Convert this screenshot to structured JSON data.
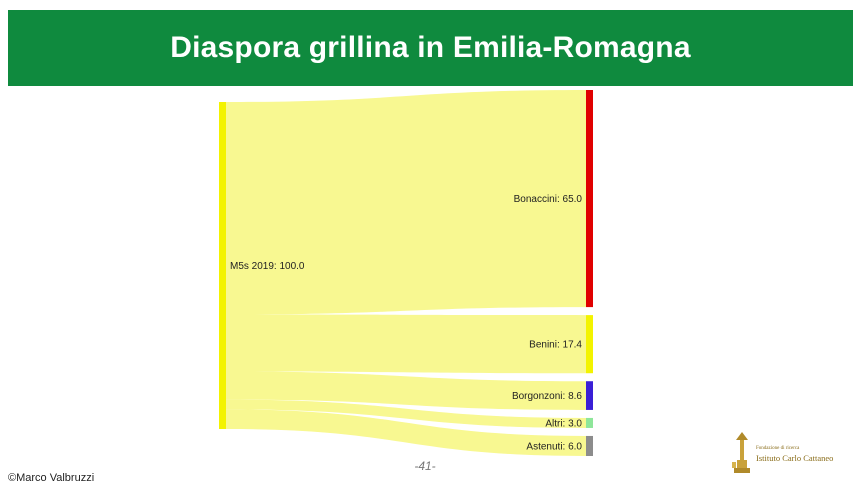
{
  "header": {
    "title": "Diaspora grillina in Emilia-Romagna"
  },
  "chart_data": {
    "type": "sankey",
    "source": {
      "name": "M5s 2019",
      "value": 100.0,
      "label": "M5s 2019: 100.0",
      "color": "#f3f300"
    },
    "targets": [
      {
        "name": "Bonaccini",
        "value": 65.0,
        "label": "Bonaccini: 65.0",
        "color": "#e00000"
      },
      {
        "name": "Benini",
        "value": 17.4,
        "label": "Benini: 17.4",
        "color": "#f3f300"
      },
      {
        "name": "Borgonzoni",
        "value": 8.6,
        "label": "Borgonzoni: 8.6",
        "color": "#3a1fd6"
      },
      {
        "name": "Altri",
        "value": 3.0,
        "label": "Altri: 3.0",
        "color": "#8ee69a"
      },
      {
        "name": "Astenuti",
        "value": 6.0,
        "label": "Astenuti: 6.0",
        "color": "#8c8c8c"
      }
    ],
    "link_color": "#f8f891"
  },
  "footer": {
    "page_number": "-41-",
    "copyright": "©Marco Valbruzzi",
    "logo_line1": "Fondazione di ricerca",
    "logo_line2": "Istituto Carlo Cattaneo"
  }
}
